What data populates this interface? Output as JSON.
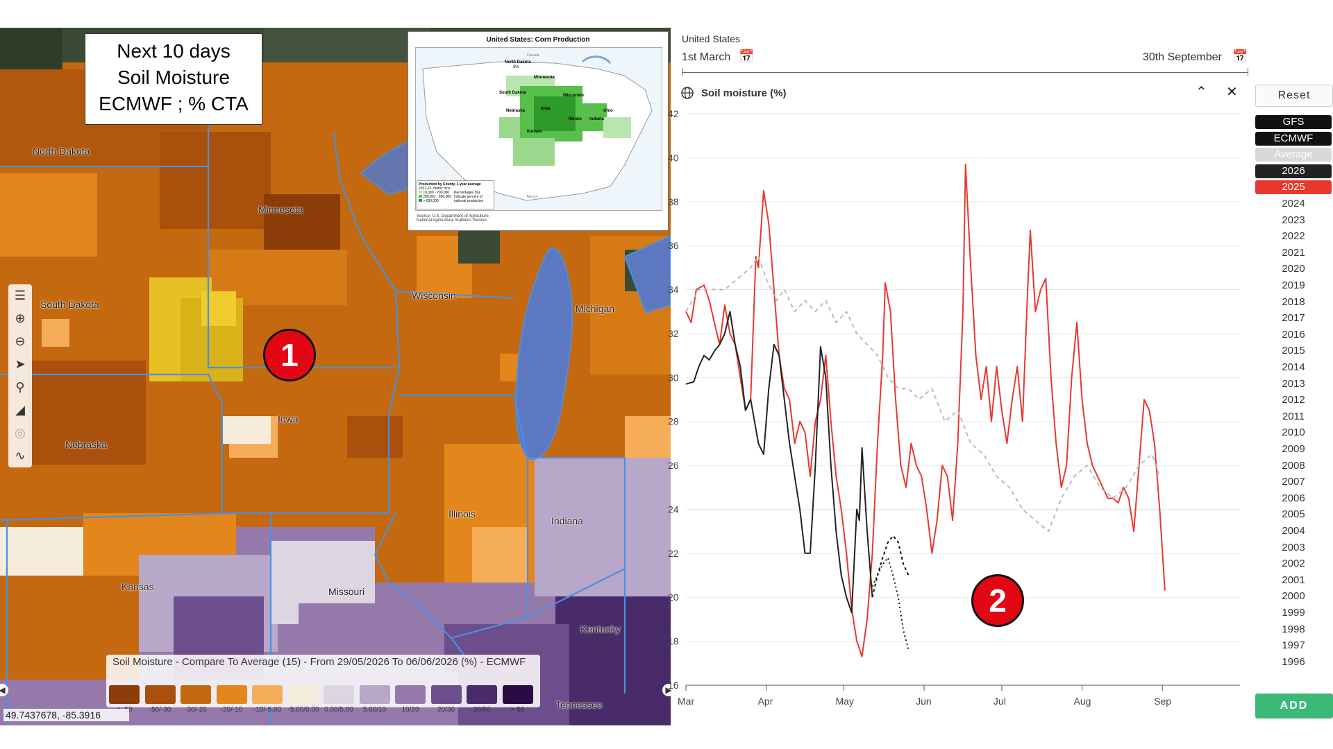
{
  "map_title": [
    "Next 10 days",
    "Soil Moisture",
    "ECMWF ; % CTA"
  ],
  "states": [
    {
      "name": "North Dakota"
    },
    {
      "name": "Minnesota"
    },
    {
      "name": "South Dakota"
    },
    {
      "name": "Wisconsin"
    },
    {
      "name": "Michigan"
    },
    {
      "name": "Iowa"
    },
    {
      "name": "Nebraska"
    },
    {
      "name": "Illinois"
    },
    {
      "name": "Indiana"
    },
    {
      "name": "Kansas"
    },
    {
      "name": "Missouri"
    },
    {
      "name": "Kentucky"
    },
    {
      "name": "Tennessee"
    }
  ],
  "inset": {
    "title": "United States: Corn Production",
    "labels": [
      "North Dakota",
      "3%",
      "Minnesota",
      "South Dakota",
      "Wisconsin",
      "Iowa",
      "Nebraska",
      "Illinois",
      "Indiana",
      "Kansas",
      "Ohio",
      "Canada",
      "Mexico"
    ],
    "legend_title": "Production by County, 3-year average",
    "legend_sub": "2021-23, metric tons",
    "legend_items": [
      "10,000 - 200,000",
      "200,001 - 600,000",
      "> 600,000"
    ],
    "legend_note": "Percentages (%) indicate percent of national production",
    "source": "Source: U.S. Department of Agriculture, National Agricultural Statistics Service"
  },
  "markers": {
    "one": "1",
    "two": "2"
  },
  "legend": {
    "title": "Soil Moisture - Compare To Average (15) - From 29/05/2026 To 06/06/2026 (%) - ECMWF",
    "items": [
      {
        "label": "< -50",
        "color": "#8b3c07"
      },
      {
        "label": "-50/-30",
        "color": "#a8500c"
      },
      {
        "label": "-30/-20",
        "color": "#c4690f"
      },
      {
        "label": "-20/-10",
        "color": "#e3861c"
      },
      {
        "label": "-10/-5.00",
        "color": "#f6ad5a"
      },
      {
        "label": "-5.00/0.00",
        "color": "#f6ecdc"
      },
      {
        "label": "0.00/5.00",
        "color": "#ddd6e2"
      },
      {
        "label": "5.00/10",
        "color": "#b8a7c8"
      },
      {
        "label": "10/20",
        "color": "#9679ab"
      },
      {
        "label": "20/30",
        "color": "#6c4e8c"
      },
      {
        "label": "30/50",
        "color": "#4a2b6a"
      },
      {
        "label": "> 50",
        "color": "#2b0b45"
      }
    ]
  },
  "coords": "49.7437678, -85.3916",
  "panel": {
    "country": "United States",
    "start_date": "1st March",
    "end_date": "30th September",
    "chart_title": "Soil moisture (%)",
    "reset": "Reset",
    "add": "ADD",
    "collapse_icon": "chevron-up-icon",
    "close_icon": "close-icon"
  },
  "years": [
    {
      "label": "GFS",
      "bg": "#111111",
      "fg": "#ffffff"
    },
    {
      "label": "ECMWF",
      "bg": "#111111",
      "fg": "#ffffff"
    },
    {
      "label": "Average",
      "bg": "#d8d8d8",
      "fg": "#ffffff"
    },
    {
      "label": "2026",
      "bg": "#222222",
      "fg": "#ffffff"
    },
    {
      "label": "2025",
      "bg": "#e8382e",
      "fg": "#ffffff"
    },
    {
      "label": "2024"
    },
    {
      "label": "2023"
    },
    {
      "label": "2022"
    },
    {
      "label": "2021"
    },
    {
      "label": "2020"
    },
    {
      "label": "2019"
    },
    {
      "label": "2018"
    },
    {
      "label": "2017"
    },
    {
      "label": "2016"
    },
    {
      "label": "2015"
    },
    {
      "label": "2014"
    },
    {
      "label": "2013"
    },
    {
      "label": "2012"
    },
    {
      "label": "2011"
    },
    {
      "label": "2010"
    },
    {
      "label": "2009"
    },
    {
      "label": "2008"
    },
    {
      "label": "2007"
    },
    {
      "label": "2006"
    },
    {
      "label": "2005"
    },
    {
      "label": "2004"
    },
    {
      "label": "2003"
    },
    {
      "label": "2002"
    },
    {
      "label": "2001"
    },
    {
      "label": "2000"
    },
    {
      "label": "1999"
    },
    {
      "label": "1998"
    },
    {
      "label": "1997"
    },
    {
      "label": "1996"
    }
  ],
  "chart_data": {
    "type": "line",
    "ylim": [
      16,
      42
    ],
    "yticks": [
      16,
      18,
      20,
      22,
      24,
      26,
      28,
      30,
      32,
      34,
      36,
      38,
      40,
      42
    ],
    "xlim": [
      0,
      214
    ],
    "months": [
      {
        "label": "Mar",
        "day": 0
      },
      {
        "label": "Apr",
        "day": 31
      },
      {
        "label": "May",
        "day": 61
      },
      {
        "label": "Jun",
        "day": 92
      },
      {
        "label": "Jul",
        "day": 122
      },
      {
        "label": "Aug",
        "day": 153
      },
      {
        "label": "Sep",
        "day": 184
      }
    ],
    "series": [
      {
        "name": "2025",
        "color": "#e8382e",
        "dash": "",
        "points": [
          [
            0,
            33
          ],
          [
            2,
            32.5
          ],
          [
            4,
            34
          ],
          [
            7,
            34.2
          ],
          [
            9,
            33.5
          ],
          [
            11,
            32.5
          ],
          [
            13,
            31.5
          ],
          [
            15,
            33.3
          ],
          [
            17,
            32
          ],
          [
            19,
            31.5
          ],
          [
            21,
            30
          ],
          [
            23,
            28.5
          ],
          [
            25,
            29
          ],
          [
            27,
            35.5
          ],
          [
            28,
            35
          ],
          [
            30,
            38.5
          ],
          [
            32,
            37
          ],
          [
            34,
            34
          ],
          [
            36,
            31
          ],
          [
            38,
            29.5
          ],
          [
            40,
            29
          ],
          [
            42,
            27
          ],
          [
            44,
            28
          ],
          [
            46,
            27.5
          ],
          [
            48,
            25.5
          ],
          [
            50,
            28
          ],
          [
            52,
            29
          ],
          [
            54,
            31
          ],
          [
            56,
            28
          ],
          [
            58,
            25.5
          ],
          [
            60,
            24
          ],
          [
            62,
            22
          ],
          [
            64,
            19.5
          ],
          [
            66,
            18
          ],
          [
            68,
            17.3
          ],
          [
            70,
            19
          ],
          [
            72,
            22
          ],
          [
            74,
            27
          ],
          [
            76,
            31
          ],
          [
            77,
            34.3
          ],
          [
            79,
            33
          ],
          [
            81,
            29
          ],
          [
            83,
            26
          ],
          [
            85,
            25
          ],
          [
            87,
            27
          ],
          [
            89,
            26
          ],
          [
            91,
            25.5
          ],
          [
            93,
            24
          ],
          [
            95,
            22
          ],
          [
            97,
            23.5
          ],
          [
            99,
            26
          ],
          [
            101,
            25.5
          ],
          [
            103,
            23.5
          ],
          [
            105,
            27
          ],
          [
            107,
            33
          ],
          [
            108,
            39.7
          ],
          [
            110,
            35
          ],
          [
            112,
            31
          ],
          [
            114,
            29
          ],
          [
            116,
            30.5
          ],
          [
            118,
            28
          ],
          [
            120,
            30.5
          ],
          [
            122,
            28.5
          ],
          [
            124,
            27
          ],
          [
            126,
            29
          ],
          [
            128,
            30.5
          ],
          [
            130,
            28
          ],
          [
            132,
            34
          ],
          [
            133,
            36.7
          ],
          [
            135,
            33
          ],
          [
            137,
            34
          ],
          [
            139,
            34.5
          ],
          [
            141,
            30
          ],
          [
            143,
            27
          ],
          [
            145,
            25
          ],
          [
            147,
            26
          ],
          [
            149,
            30
          ],
          [
            151,
            32.5
          ],
          [
            153,
            29
          ],
          [
            155,
            27
          ],
          [
            157,
            26
          ],
          [
            159,
            25.5
          ],
          [
            161,
            25
          ],
          [
            163,
            24.5
          ],
          [
            165,
            24.5
          ],
          [
            167,
            24.3
          ],
          [
            169,
            25
          ],
          [
            171,
            24.5
          ],
          [
            173,
            23
          ],
          [
            175,
            26
          ],
          [
            177,
            29
          ],
          [
            179,
            28.5
          ],
          [
            181,
            27
          ],
          [
            183,
            24
          ],
          [
            185,
            20.3
          ]
        ]
      },
      {
        "name": "2026",
        "color": "#222222",
        "dash": "",
        "points": [
          [
            0,
            29.7
          ],
          [
            3,
            29.8
          ],
          [
            5,
            30.5
          ],
          [
            7,
            31
          ],
          [
            9,
            30.8
          ],
          [
            11,
            31.2
          ],
          [
            13,
            31.5
          ],
          [
            15,
            32
          ],
          [
            17,
            33
          ],
          [
            19,
            31.5
          ],
          [
            21,
            30.5
          ],
          [
            23,
            28.5
          ],
          [
            25,
            29
          ],
          [
            28,
            27
          ],
          [
            30,
            26.5
          ],
          [
            32,
            29.5
          ],
          [
            34,
            31.5
          ],
          [
            36,
            31
          ],
          [
            38,
            29
          ],
          [
            40,
            27
          ],
          [
            42,
            25.5
          ],
          [
            44,
            24
          ],
          [
            46,
            22
          ],
          [
            48,
            22
          ],
          [
            50,
            26
          ],
          [
            52,
            31.4
          ],
          [
            54,
            30
          ],
          [
            56,
            26
          ],
          [
            58,
            23
          ],
          [
            60,
            21
          ],
          [
            62,
            20
          ],
          [
            64,
            19.3
          ],
          [
            66,
            24
          ],
          [
            67,
            23.5
          ],
          [
            68,
            26.8
          ],
          [
            70,
            23
          ],
          [
            72,
            20
          ]
        ]
      },
      {
        "name": "Average",
        "color": "#bbbbbb",
        "dash": "6,5",
        "points": [
          [
            0,
            33
          ],
          [
            5,
            34
          ],
          [
            10,
            34
          ],
          [
            15,
            34
          ],
          [
            20,
            34.5
          ],
          [
            25,
            35
          ],
          [
            28,
            35.5
          ],
          [
            31,
            34.5
          ],
          [
            35,
            33.5
          ],
          [
            38,
            34
          ],
          [
            42,
            33
          ],
          [
            46,
            33.5
          ],
          [
            50,
            33
          ],
          [
            54,
            33.5
          ],
          [
            58,
            32.5
          ],
          [
            62,
            33
          ],
          [
            66,
            32
          ],
          [
            70,
            31.5
          ],
          [
            74,
            31
          ],
          [
            78,
            30
          ],
          [
            82,
            29.5
          ],
          [
            86,
            29.5
          ],
          [
            90,
            29
          ],
          [
            95,
            29.5
          ],
          [
            100,
            28
          ],
          [
            105,
            28.5
          ],
          [
            110,
            27
          ],
          [
            115,
            26.5
          ],
          [
            120,
            25.5
          ],
          [
            125,
            25
          ],
          [
            130,
            24
          ],
          [
            135,
            23.5
          ],
          [
            140,
            23
          ],
          [
            145,
            24.5
          ],
          [
            150,
            25.5
          ],
          [
            155,
            26
          ],
          [
            160,
            25
          ],
          [
            165,
            24.5
          ],
          [
            170,
            25
          ],
          [
            175,
            26
          ],
          [
            180,
            26.5
          ],
          [
            183,
            25.5
          ]
        ]
      },
      {
        "name": "GFS",
        "color": "#111111",
        "dash": "4,4",
        "points": [
          [
            72,
            20
          ],
          [
            74,
            21
          ],
          [
            76,
            21.8
          ],
          [
            78,
            22.5
          ],
          [
            80,
            22.8
          ],
          [
            82,
            22.5
          ],
          [
            84,
            21.5
          ],
          [
            86,
            21
          ]
        ]
      },
      {
        "name": "ECMWF",
        "color": "#111111",
        "dash": "2,4",
        "points": [
          [
            72,
            20.5
          ],
          [
            74,
            21
          ],
          [
            76,
            21.5
          ],
          [
            78,
            21.8
          ],
          [
            80,
            21
          ],
          [
            82,
            20
          ],
          [
            84,
            18.5
          ],
          [
            86,
            17.6
          ]
        ]
      }
    ]
  }
}
